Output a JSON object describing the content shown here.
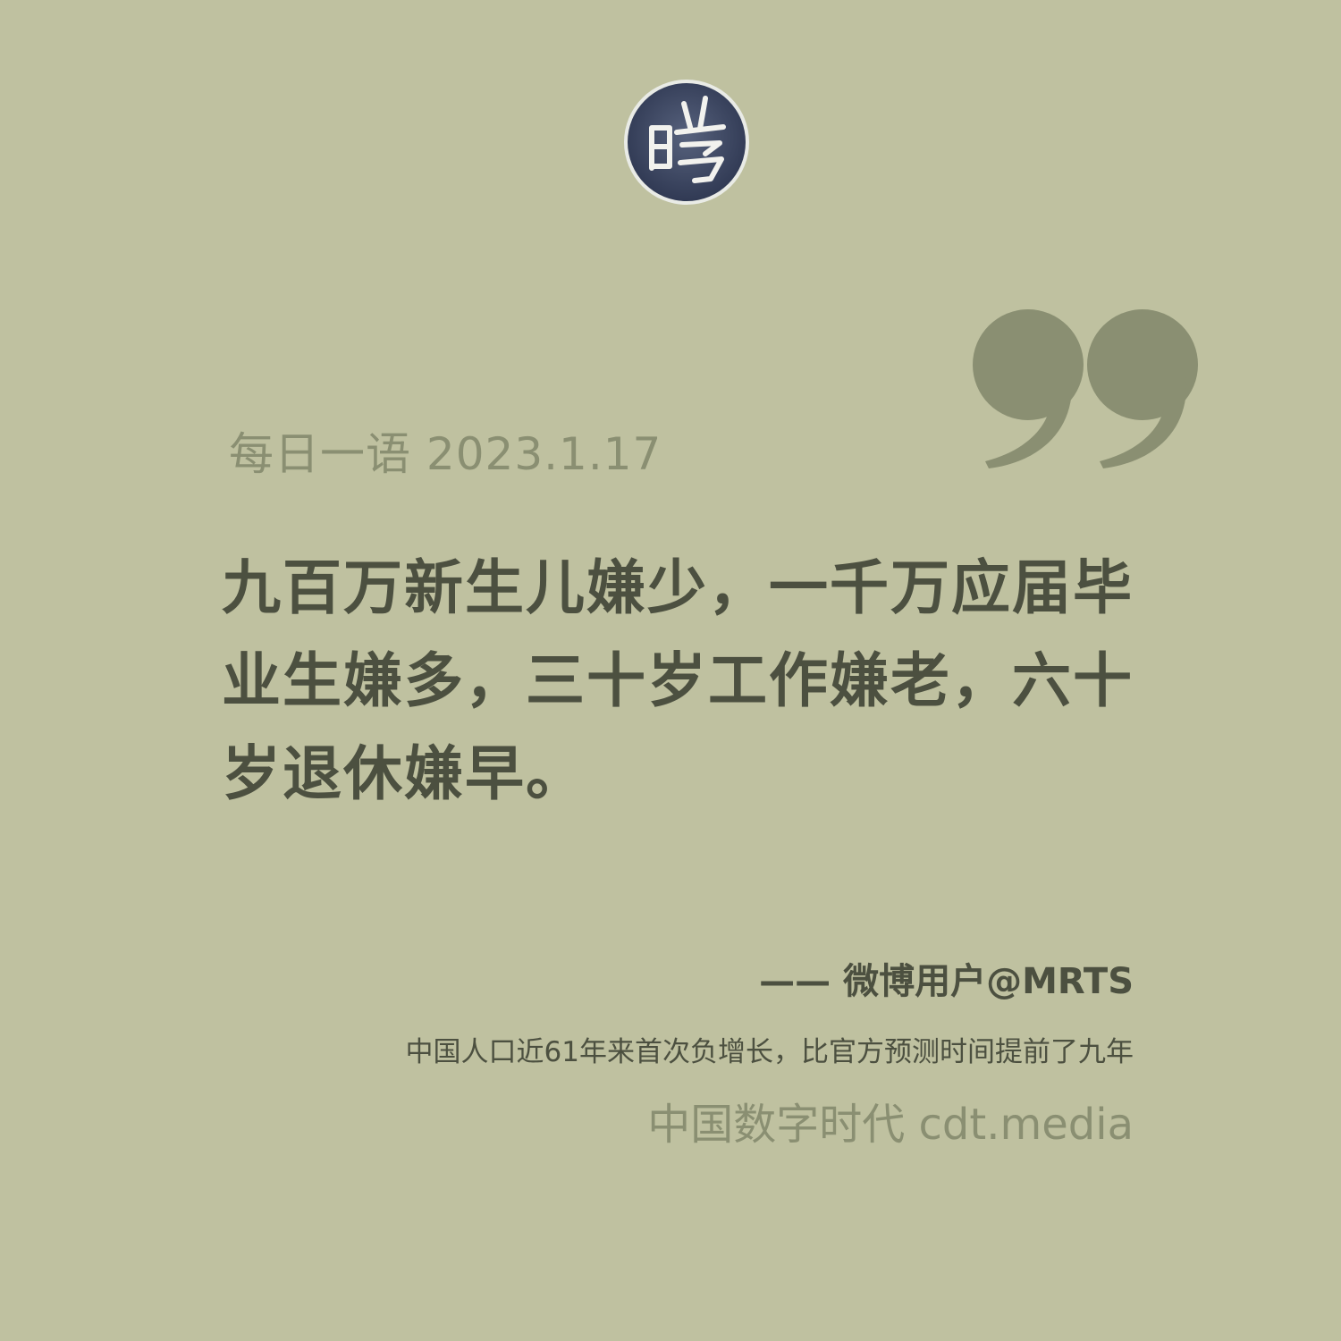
{
  "header": {
    "logo_icon": "seal-logo-icon",
    "logo_glyph": "时"
  },
  "decoration": {
    "quote_icon": "closing-quote-icon",
    "quote_color": "#8a8f72"
  },
  "card": {
    "background_color": "#bfc1a0",
    "date_label": "每日一语 2023.1.17",
    "quote": "九百万新生儿嫌少，一千万应届毕业生嫌多，三十岁工作嫌老，六十岁退休嫌早。",
    "attribution": "—— 微博用户@MRTS",
    "caption": "中国人口近61年来首次负增长，比官方预测时间提前了九年",
    "brand": "中国数字时代 cdt.media"
  }
}
